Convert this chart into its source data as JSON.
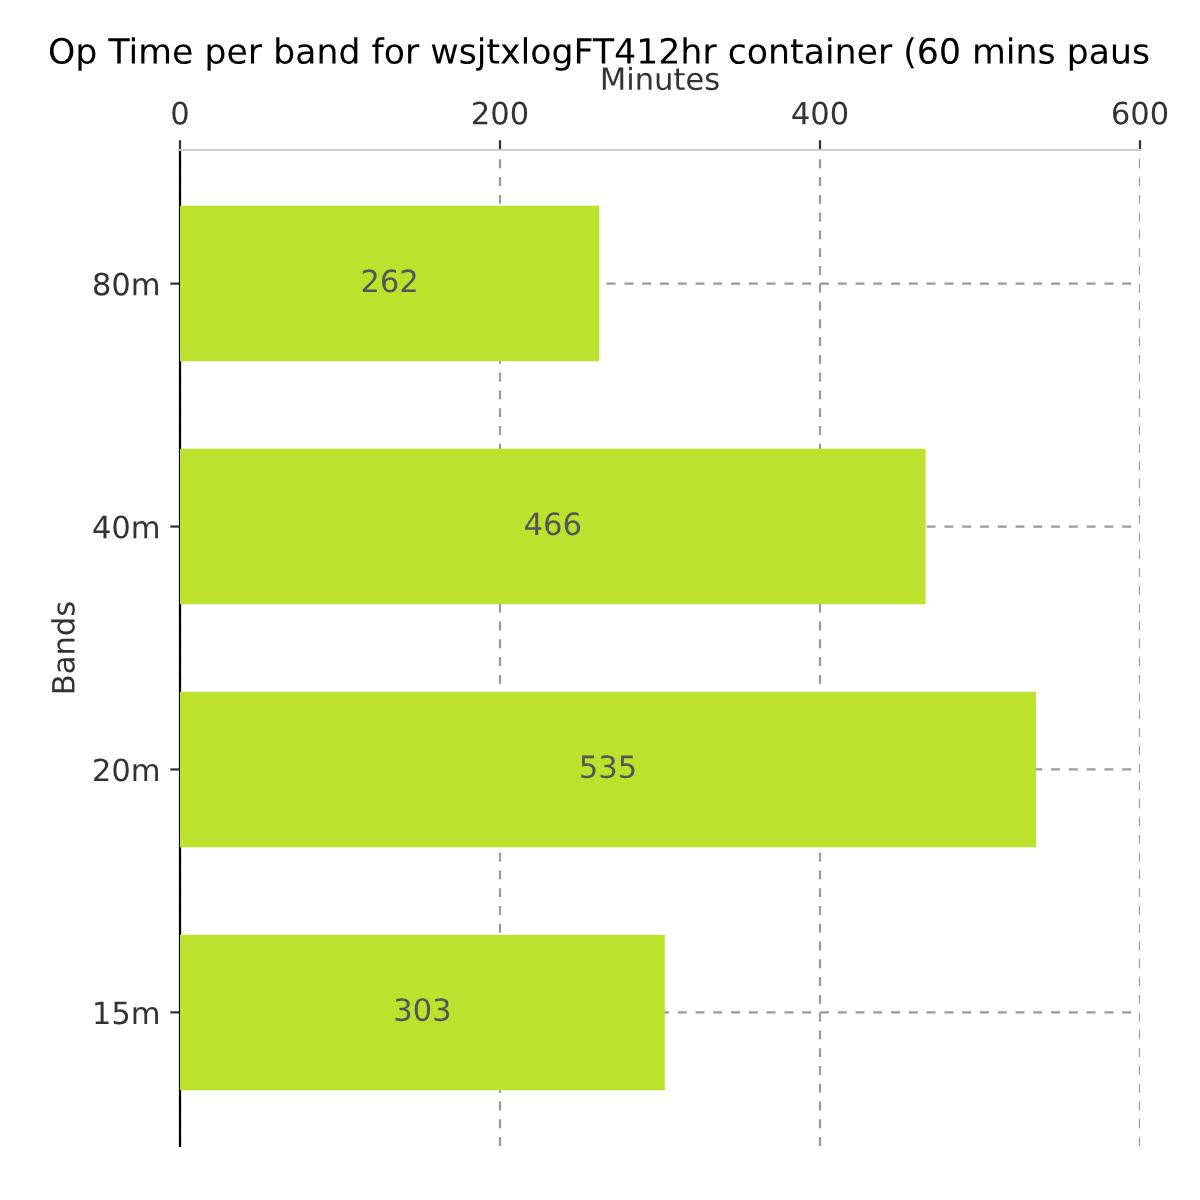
{
  "chart_data": {
    "type": "bar",
    "orientation": "horizontal",
    "title": "Op Time per band for wsjtxlogFT412hr container (60 mins paus",
    "xlabel": "Minutes",
    "ylabel": "Bands",
    "categories": [
      "80m",
      "40m",
      "20m",
      "15m"
    ],
    "values": [
      262,
      466,
      535,
      303
    ],
    "color": "#bde22e",
    "xlim": [
      0,
      600
    ],
    "xticks": [
      0,
      200,
      400,
      600
    ],
    "grid": true,
    "data_labels": true
  }
}
